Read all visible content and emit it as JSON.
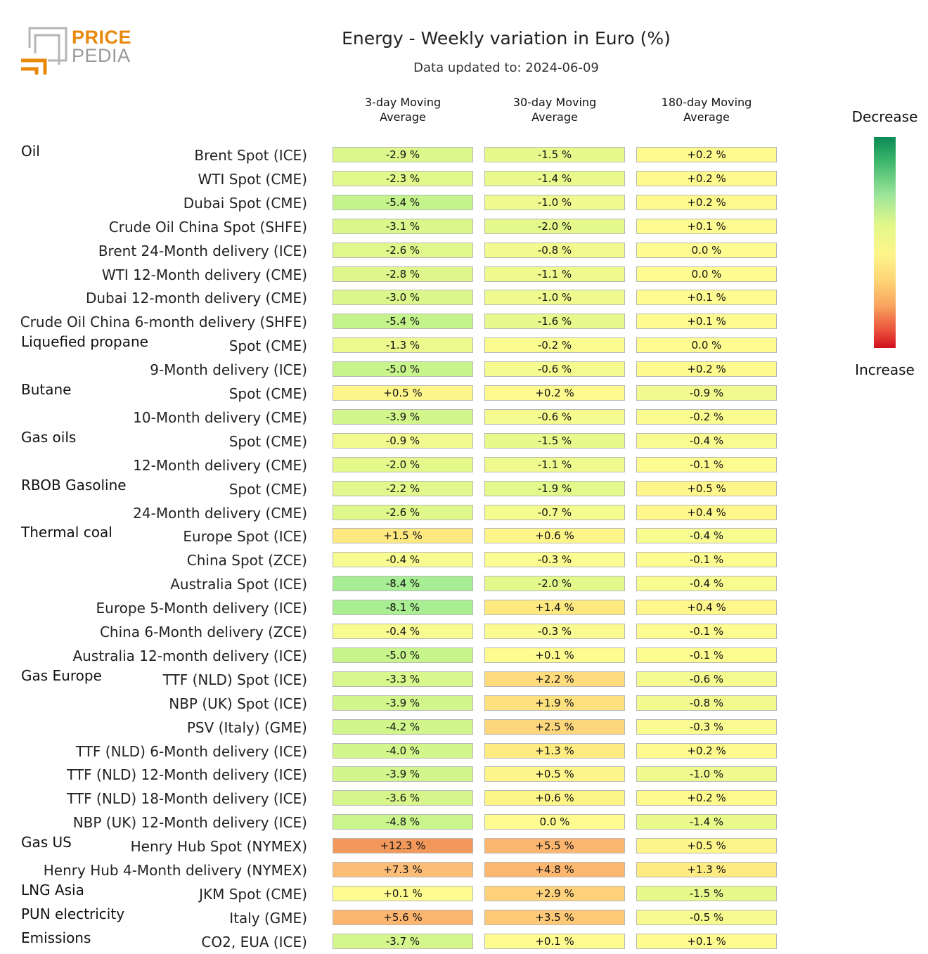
{
  "logo": {
    "line1": "PRICE",
    "line2": "PEDIA"
  },
  "chart_data": {
    "type": "table",
    "title": "Energy - Weekly variation in Euro (%)",
    "subtitle": "Data updated to: 2024-06-09",
    "columns": [
      "3-day Moving Average",
      "30-day Moving Average",
      "180-day Moving Average"
    ],
    "legend": {
      "top": "Decrease",
      "bottom": "Increase"
    },
    "rows": [
      {
        "group": "Oil",
        "label": "Brent Spot (ICE)",
        "values": [
          -2.9,
          -1.5,
          0.2
        ],
        "texts": [
          "-2.9 %",
          "-1.5 %",
          "+0.2 %"
        ]
      },
      {
        "group": "",
        "label": "WTI Spot (CME)",
        "values": [
          -2.3,
          -1.4,
          0.2
        ],
        "texts": [
          "-2.3 %",
          "-1.4 %",
          "+0.2 %"
        ]
      },
      {
        "group": "",
        "label": "Dubai Spot (CME)",
        "values": [
          -5.4,
          -1.0,
          0.2
        ],
        "texts": [
          "-5.4 %",
          "-1.0 %",
          "+0.2 %"
        ]
      },
      {
        "group": "",
        "label": "Crude Oil China Spot (SHFE)",
        "values": [
          -3.1,
          -2.0,
          0.1
        ],
        "texts": [
          "-3.1 %",
          "-2.0 %",
          "+0.1 %"
        ]
      },
      {
        "group": "",
        "label": "Brent 24-Month delivery (ICE)",
        "values": [
          -2.6,
          -0.8,
          0.0
        ],
        "texts": [
          "-2.6 %",
          "-0.8 %",
          "0.0 %"
        ]
      },
      {
        "group": "",
        "label": "WTI 12-Month delivery (CME)",
        "values": [
          -2.8,
          -1.1,
          0.0
        ],
        "texts": [
          "-2.8 %",
          "-1.1 %",
          "0.0 %"
        ]
      },
      {
        "group": "",
        "label": "Dubai 12-month delivery (CME)",
        "values": [
          -3.0,
          -1.0,
          0.1
        ],
        "texts": [
          "-3.0 %",
          "-1.0 %",
          "+0.1 %"
        ]
      },
      {
        "group": "",
        "label": "Crude Oil China 6-month delivery (SHFE)",
        "values": [
          -5.4,
          -1.6,
          0.1
        ],
        "texts": [
          "-5.4 %",
          "-1.6 %",
          "+0.1 %"
        ]
      },
      {
        "group": "Liquefied propane",
        "label": "Spot (CME)",
        "values": [
          -1.3,
          -0.2,
          0.0
        ],
        "texts": [
          "-1.3 %",
          "-0.2 %",
          "0.0 %"
        ]
      },
      {
        "group": "",
        "label": "9-Month delivery (ICE)",
        "values": [
          -5.0,
          -0.6,
          0.2
        ],
        "texts": [
          "-5.0 %",
          "-0.6 %",
          "+0.2 %"
        ]
      },
      {
        "group": "Butane",
        "label": "Spot (CME)",
        "values": [
          0.5,
          0.2,
          -0.9
        ],
        "texts": [
          "+0.5 %",
          "+0.2 %",
          "-0.9 %"
        ]
      },
      {
        "group": "",
        "label": "10-Month delivery (CME)",
        "values": [
          -3.9,
          -0.6,
          -0.2
        ],
        "texts": [
          "-3.9 %",
          "-0.6 %",
          "-0.2 %"
        ]
      },
      {
        "group": "Gas oils",
        "label": "Spot (CME)",
        "values": [
          -0.9,
          -1.5,
          -0.4
        ],
        "texts": [
          "-0.9 %",
          "-1.5 %",
          "-0.4 %"
        ]
      },
      {
        "group": "",
        "label": "12-Month delivery (CME)",
        "values": [
          -2.0,
          -1.1,
          -0.1
        ],
        "texts": [
          "-2.0 %",
          "-1.1 %",
          "-0.1 %"
        ]
      },
      {
        "group": "RBOB Gasoline",
        "label": "Spot (CME)",
        "values": [
          -2.2,
          -1.9,
          0.5
        ],
        "texts": [
          "-2.2 %",
          "-1.9 %",
          "+0.5 %"
        ]
      },
      {
        "group": "",
        "label": "24-Month delivery (CME)",
        "values": [
          -2.6,
          -0.7,
          0.4
        ],
        "texts": [
          "-2.6 %",
          "-0.7 %",
          "+0.4 %"
        ]
      },
      {
        "group": "Thermal coal",
        "label": "Europe Spot (ICE)",
        "values": [
          1.5,
          0.6,
          -0.4
        ],
        "texts": [
          "+1.5 %",
          "+0.6 %",
          "-0.4 %"
        ]
      },
      {
        "group": "",
        "label": "China Spot (ZCE)",
        "values": [
          -0.4,
          -0.3,
          -0.1
        ],
        "texts": [
          "-0.4 %",
          "-0.3 %",
          "-0.1 %"
        ]
      },
      {
        "group": "",
        "label": "Australia Spot (ICE)",
        "values": [
          -8.4,
          -2.0,
          -0.4
        ],
        "texts": [
          "-8.4 %",
          "-2.0 %",
          "-0.4 %"
        ]
      },
      {
        "group": "",
        "label": "Europe 5-Month delivery (ICE)",
        "values": [
          -8.1,
          1.4,
          0.4
        ],
        "texts": [
          "-8.1 %",
          "+1.4 %",
          "+0.4 %"
        ]
      },
      {
        "group": "",
        "label": "China 6-Month delivery (ZCE)",
        "values": [
          -0.4,
          -0.3,
          -0.1
        ],
        "texts": [
          "-0.4 %",
          "-0.3 %",
          "-0.1 %"
        ]
      },
      {
        "group": "",
        "label": "Australia 12-month delivery (ICE)",
        "values": [
          -5.0,
          0.1,
          -0.1
        ],
        "texts": [
          "-5.0 %",
          "+0.1 %",
          "-0.1 %"
        ]
      },
      {
        "group": "Gas Europe",
        "label": "TTF (NLD) Spot (ICE)",
        "values": [
          -3.3,
          2.2,
          -0.6
        ],
        "texts": [
          "-3.3 %",
          "+2.2 %",
          "-0.6 %"
        ]
      },
      {
        "group": "",
        "label": "NBP (UK) Spot (ICE)",
        "values": [
          -3.9,
          1.9,
          -0.8
        ],
        "texts": [
          "-3.9 %",
          "+1.9 %",
          "-0.8 %"
        ]
      },
      {
        "group": "",
        "label": "PSV (Italy) (GME)",
        "values": [
          -4.2,
          2.5,
          -0.3
        ],
        "texts": [
          "-4.2 %",
          "+2.5 %",
          "-0.3 %"
        ]
      },
      {
        "group": "",
        "label": "TTF (NLD) 6-Month delivery (ICE)",
        "values": [
          -4.0,
          1.3,
          0.2
        ],
        "texts": [
          "-4.0 %",
          "+1.3 %",
          "+0.2 %"
        ]
      },
      {
        "group": "",
        "label": "TTF (NLD) 12-Month delivery (ICE)",
        "values": [
          -3.9,
          0.5,
          -1.0
        ],
        "texts": [
          "-3.9 %",
          "+0.5 %",
          "-1.0 %"
        ]
      },
      {
        "group": "",
        "label": "TTF (NLD) 18-Month delivery (ICE)",
        "values": [
          -3.6,
          0.6,
          0.2
        ],
        "texts": [
          "-3.6 %",
          "+0.6 %",
          "+0.2 %"
        ]
      },
      {
        "group": "",
        "label": "NBP (UK) 12-Month delivery (ICE)",
        "values": [
          -4.8,
          0.0,
          -1.4
        ],
        "texts": [
          "-4.8 %",
          "0.0 %",
          "-1.4 %"
        ]
      },
      {
        "group": "Gas US",
        "label": "Henry Hub Spot (NYMEX)",
        "values": [
          12.3,
          5.5,
          0.5
        ],
        "texts": [
          "+12.3 %",
          "+5.5 %",
          "+0.5 %"
        ]
      },
      {
        "group": "",
        "label": "Henry Hub 4-Month delivery (NYMEX)",
        "values": [
          7.3,
          4.8,
          1.3
        ],
        "texts": [
          "+7.3 %",
          "+4.8 %",
          "+1.3 %"
        ]
      },
      {
        "group": "LNG Asia",
        "label": "JKM Spot (CME)",
        "values": [
          0.1,
          2.9,
          -1.5
        ],
        "texts": [
          "+0.1 %",
          "+2.9 %",
          "-1.5 %"
        ]
      },
      {
        "group": "PUN electricity",
        "label": "Italy (GME)",
        "values": [
          5.6,
          3.5,
          -0.5
        ],
        "texts": [
          "+5.6 %",
          "+3.5 %",
          "-0.5 %"
        ]
      },
      {
        "group": "Emissions",
        "label": "CO2, EUA (ICE)",
        "values": [
          -3.7,
          0.1,
          0.1
        ],
        "texts": [
          "-3.7 %",
          "+0.1 %",
          "+0.1 %"
        ]
      }
    ]
  },
  "colors": {
    "logo_orange": "#e8890c",
    "logo_gray": "#9a9a9a",
    "cell_border": "#b7b7b7"
  }
}
